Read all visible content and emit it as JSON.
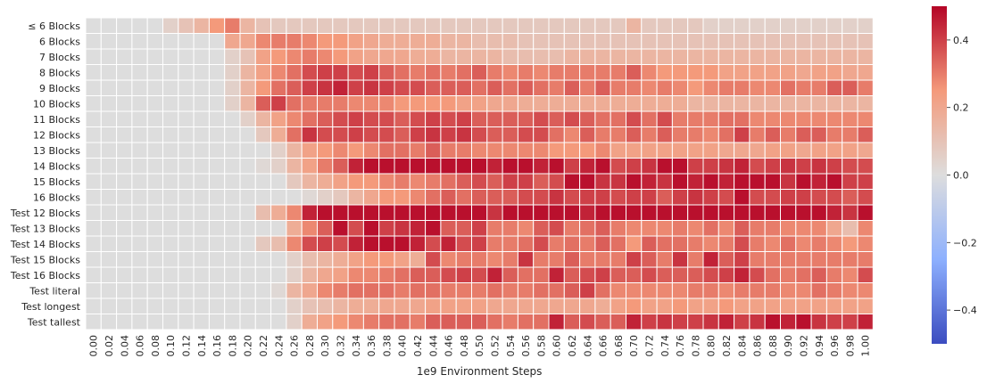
{
  "chart_data": {
    "type": "heatmap",
    "title": "",
    "xlabel": "1e9 Environment Steps",
    "ylabel": "",
    "x": [
      "0.00",
      "0.02",
      "0.04",
      "0.06",
      "0.08",
      "0.10",
      "0.12",
      "0.14",
      "0.16",
      "0.18",
      "0.20",
      "0.22",
      "0.24",
      "0.26",
      "0.28",
      "0.30",
      "0.32",
      "0.34",
      "0.36",
      "0.38",
      "0.40",
      "0.42",
      "0.44",
      "0.46",
      "0.48",
      "0.50",
      "0.52",
      "0.54",
      "0.56",
      "0.58",
      "0.60",
      "0.62",
      "0.64",
      "0.66",
      "0.68",
      "0.70",
      "0.72",
      "0.74",
      "0.76",
      "0.78",
      "0.80",
      "0.82",
      "0.84",
      "0.86",
      "0.88",
      "0.90",
      "0.92",
      "0.94",
      "0.96",
      "0.98",
      "1.00"
    ],
    "y": [
      "≤ 6 Blocks",
      "6 Blocks",
      "7 Blocks",
      "8 Blocks",
      "9 Blocks",
      "10 Blocks",
      "11 Blocks",
      "12 Blocks",
      "13 Blocks",
      "14 Blocks",
      "15 Blocks",
      "16 Blocks",
      "Test 12 Blocks",
      "Test 13 Blocks",
      "Test 14 Blocks",
      "Test 15 Blocks",
      "Test 16 Blocks",
      "Test literal",
      "Test longest",
      "Test tallest"
    ],
    "colormap": "coolwarm",
    "colorbar": {
      "vmin": -0.5,
      "vmax": 0.5,
      "ticks": [
        -0.4,
        -0.2,
        0.0,
        0.2,
        0.4
      ],
      "tick_labels": [
        "−0.4",
        "−0.2",
        "0.0",
        "0.2",
        "0.4"
      ]
    },
    "grid_line_color": "#ffffff",
    "values": [
      [
        0,
        0,
        0,
        0,
        0,
        0.05,
        0.1,
        0.15,
        0.25,
        0.3,
        0.15,
        0.1,
        0.08,
        0.08,
        0.08,
        0.08,
        0.08,
        0.08,
        0.08,
        0.08,
        0.08,
        0.08,
        0.08,
        0.08,
        0.08,
        0.08,
        0.08,
        0.08,
        0.08,
        0.08,
        0.08,
        0.08,
        0.08,
        0.08,
        0.08,
        0.15,
        0.08,
        0.08,
        0.08,
        0.08,
        0.05,
        0.05,
        0.05,
        0.05,
        0.05,
        0.05,
        0.05,
        0.05,
        0.05,
        0.05,
        0.05
      ],
      [
        0,
        0,
        0,
        0,
        0,
        0,
        0,
        0,
        0,
        0.2,
        0.2,
        0.28,
        0.3,
        0.3,
        0.28,
        0.25,
        0.25,
        0.22,
        0.2,
        0.18,
        0.18,
        0.18,
        0.18,
        0.15,
        0.15,
        0.12,
        0.12,
        0.12,
        0.1,
        0.1,
        0.1,
        0.1,
        0.1,
        0.1,
        0.1,
        0.1,
        0.1,
        0.1,
        0.1,
        0.1,
        0.1,
        0.1,
        0.1,
        0.1,
        0.1,
        0.1,
        0.1,
        0.1,
        0.1,
        0.1,
        0.1
      ],
      [
        0,
        0,
        0,
        0,
        0,
        0,
        0,
        0,
        0,
        0.05,
        0.1,
        0.22,
        0.25,
        0.28,
        0.3,
        0.28,
        0.25,
        0.22,
        0.2,
        0.2,
        0.2,
        0.18,
        0.18,
        0.15,
        0.15,
        0.15,
        0.15,
        0.12,
        0.12,
        0.12,
        0.12,
        0.15,
        0.15,
        0.15,
        0.15,
        0.15,
        0.15,
        0.15,
        0.15,
        0.15,
        0.15,
        0.15,
        0.15,
        0.15,
        0.15,
        0.15,
        0.15,
        0.15,
        0.15,
        0.15,
        0.15
      ],
      [
        0,
        0,
        0,
        0,
        0,
        0,
        0,
        0,
        0,
        0.05,
        0.15,
        0.22,
        0.28,
        0.32,
        0.38,
        0.4,
        0.4,
        0.38,
        0.4,
        0.35,
        0.32,
        0.3,
        0.32,
        0.3,
        0.32,
        0.35,
        0.3,
        0.28,
        0.3,
        0.28,
        0.3,
        0.3,
        0.3,
        0.3,
        0.3,
        0.35,
        0.28,
        0.25,
        0.25,
        0.25,
        0.25,
        0.22,
        0.22,
        0.22,
        0.22,
        0.22,
        0.2,
        0.22,
        0.22,
        0.2,
        0.2
      ],
      [
        0,
        0,
        0,
        0,
        0,
        0,
        0,
        0,
        0,
        0.05,
        0.15,
        0.25,
        0.32,
        0.35,
        0.4,
        0.42,
        0.45,
        0.4,
        0.42,
        0.4,
        0.38,
        0.38,
        0.35,
        0.35,
        0.35,
        0.32,
        0.35,
        0.32,
        0.35,
        0.32,
        0.3,
        0.35,
        0.3,
        0.35,
        0.3,
        0.3,
        0.28,
        0.3,
        0.28,
        0.25,
        0.28,
        0.3,
        0.3,
        0.28,
        0.28,
        0.32,
        0.3,
        0.3,
        0.35,
        0.35,
        0.3
      ],
      [
        0,
        0,
        0,
        0,
        0,
        0,
        0,
        0,
        0,
        0.05,
        0.15,
        0.35,
        0.4,
        0.32,
        0.3,
        0.3,
        0.3,
        0.28,
        0.28,
        0.28,
        0.25,
        0.25,
        0.25,
        0.25,
        0.22,
        0.22,
        0.2,
        0.2,
        0.18,
        0.18,
        0.18,
        0.18,
        0.18,
        0.18,
        0.18,
        0.18,
        0.18,
        0.18,
        0.18,
        0.15,
        0.15,
        0.15,
        0.15,
        0.15,
        0.15,
        0.15,
        0.15,
        0.15,
        0.15,
        0.15,
        0.15
      ],
      [
        0,
        0,
        0,
        0,
        0,
        0,
        0,
        0,
        0,
        0,
        0.05,
        0.15,
        0.22,
        0.28,
        0.32,
        0.35,
        0.38,
        0.4,
        0.38,
        0.38,
        0.35,
        0.38,
        0.4,
        0.38,
        0.4,
        0.35,
        0.35,
        0.35,
        0.35,
        0.38,
        0.35,
        0.38,
        0.35,
        0.32,
        0.32,
        0.38,
        0.32,
        0.38,
        0.3,
        0.3,
        0.3,
        0.32,
        0.32,
        0.28,
        0.28,
        0.28,
        0.28,
        0.28,
        0.28,
        0.28,
        0.28
      ],
      [
        0,
        0,
        0,
        0,
        0,
        0,
        0,
        0,
        0,
        0,
        0,
        0.08,
        0.18,
        0.32,
        0.42,
        0.38,
        0.38,
        0.4,
        0.38,
        0.38,
        0.35,
        0.4,
        0.42,
        0.4,
        0.42,
        0.38,
        0.35,
        0.35,
        0.38,
        0.38,
        0.32,
        0.28,
        0.35,
        0.3,
        0.3,
        0.35,
        0.3,
        0.35,
        0.3,
        0.3,
        0.28,
        0.32,
        0.4,
        0.3,
        0.35,
        0.3,
        0.35,
        0.35,
        0.3,
        0.3,
        0.35
      ],
      [
        0,
        0,
        0,
        0,
        0,
        0,
        0,
        0,
        0,
        0,
        0,
        0,
        0.05,
        0.15,
        0.22,
        0.25,
        0.28,
        0.25,
        0.28,
        0.32,
        0.32,
        0.3,
        0.35,
        0.3,
        0.3,
        0.28,
        0.28,
        0.28,
        0.28,
        0.28,
        0.25,
        0.25,
        0.25,
        0.28,
        0.22,
        0.22,
        0.22,
        0.22,
        0.22,
        0.22,
        0.22,
        0.2,
        0.2,
        0.2,
        0.22,
        0.22,
        0.2,
        0.22,
        0.22,
        0.22,
        0.2
      ],
      [
        0,
        0,
        0,
        0,
        0,
        0,
        0,
        0,
        0,
        0,
        0,
        0.02,
        0.05,
        0.15,
        0.22,
        0.3,
        0.35,
        0.45,
        0.48,
        0.48,
        0.48,
        0.48,
        0.48,
        0.48,
        0.48,
        0.48,
        0.45,
        0.48,
        0.48,
        0.45,
        0.48,
        0.4,
        0.45,
        0.48,
        0.38,
        0.4,
        0.42,
        0.48,
        0.48,
        0.4,
        0.4,
        0.42,
        0.45,
        0.38,
        0.4,
        0.42,
        0.4,
        0.42,
        0.4,
        0.38,
        0.38
      ],
      [
        0,
        0,
        0,
        0,
        0,
        0,
        0,
        0,
        0,
        0,
        0,
        0,
        0,
        0.08,
        0.15,
        0.18,
        0.22,
        0.25,
        0.25,
        0.28,
        0.3,
        0.28,
        0.3,
        0.32,
        0.35,
        0.38,
        0.35,
        0.4,
        0.4,
        0.35,
        0.38,
        0.48,
        0.48,
        0.42,
        0.42,
        0.48,
        0.45,
        0.42,
        0.48,
        0.45,
        0.48,
        0.45,
        0.48,
        0.48,
        0.48,
        0.42,
        0.48,
        0.45,
        0.48,
        0.4,
        0.4
      ],
      [
        0,
        0,
        0,
        0,
        0,
        0,
        0,
        0,
        0,
        0,
        0,
        0,
        0,
        0,
        0.02,
        0.05,
        0.08,
        0.15,
        0.2,
        0.25,
        0.25,
        0.28,
        0.32,
        0.35,
        0.32,
        0.35,
        0.35,
        0.35,
        0.38,
        0.38,
        0.42,
        0.38,
        0.4,
        0.4,
        0.38,
        0.4,
        0.4,
        0.35,
        0.4,
        0.42,
        0.4,
        0.38,
        0.48,
        0.38,
        0.38,
        0.4,
        0.4,
        0.38,
        0.38,
        0.35,
        0.38
      ],
      [
        0,
        0,
        0,
        0,
        0,
        0,
        0,
        0,
        0,
        0,
        0,
        0.12,
        0.18,
        0.28,
        0.45,
        0.48,
        0.48,
        0.48,
        0.48,
        0.48,
        0.48,
        0.48,
        0.48,
        0.48,
        0.48,
        0.48,
        0.42,
        0.48,
        0.48,
        0.48,
        0.48,
        0.48,
        0.45,
        0.48,
        0.48,
        0.48,
        0.48,
        0.48,
        0.48,
        0.48,
        0.48,
        0.48,
        0.48,
        0.48,
        0.48,
        0.48,
        0.48,
        0.48,
        0.45,
        0.42,
        0.48
      ],
      [
        0,
        0,
        0,
        0,
        0,
        0,
        0,
        0,
        0,
        0,
        0,
        0,
        0,
        0.18,
        0.28,
        0.35,
        0.48,
        0.38,
        0.48,
        0.4,
        0.42,
        0.45,
        0.48,
        0.35,
        0.35,
        0.4,
        0.3,
        0.3,
        0.28,
        0.35,
        0.38,
        0.3,
        0.32,
        0.35,
        0.3,
        0.28,
        0.28,
        0.28,
        0.3,
        0.28,
        0.32,
        0.28,
        0.35,
        0.3,
        0.3,
        0.28,
        0.28,
        0.28,
        0.2,
        0.12,
        0.28
      ],
      [
        0,
        0,
        0,
        0,
        0,
        0,
        0,
        0,
        0,
        0,
        0,
        0.08,
        0.12,
        0.28,
        0.38,
        0.4,
        0.38,
        0.45,
        0.48,
        0.48,
        0.48,
        0.45,
        0.38,
        0.45,
        0.38,
        0.4,
        0.3,
        0.3,
        0.32,
        0.38,
        0.3,
        0.32,
        0.3,
        0.35,
        0.32,
        0.25,
        0.35,
        0.32,
        0.32,
        0.3,
        0.28,
        0.3,
        0.38,
        0.3,
        0.28,
        0.32,
        0.28,
        0.3,
        0.28,
        0.25,
        0.28
      ],
      [
        0,
        0,
        0,
        0,
        0,
        0,
        0,
        0,
        0,
        0,
        0,
        0,
        0,
        0.05,
        0.12,
        0.15,
        0.18,
        0.22,
        0.25,
        0.25,
        0.22,
        0.18,
        0.38,
        0.28,
        0.3,
        0.3,
        0.28,
        0.3,
        0.42,
        0.3,
        0.3,
        0.35,
        0.3,
        0.3,
        0.3,
        0.4,
        0.35,
        0.3,
        0.42,
        0.3,
        0.45,
        0.35,
        0.4,
        0.3,
        0.3,
        0.3,
        0.3,
        0.3,
        0.3,
        0.3,
        0.3
      ],
      [
        0,
        0,
        0,
        0,
        0,
        0,
        0,
        0,
        0,
        0,
        0,
        0,
        0,
        0.05,
        0.15,
        0.2,
        0.22,
        0.28,
        0.28,
        0.3,
        0.32,
        0.35,
        0.35,
        0.38,
        0.4,
        0.38,
        0.45,
        0.35,
        0.32,
        0.32,
        0.45,
        0.35,
        0.38,
        0.4,
        0.35,
        0.35,
        0.38,
        0.35,
        0.35,
        0.35,
        0.38,
        0.4,
        0.45,
        0.38,
        0.32,
        0.3,
        0.32,
        0.35,
        0.3,
        0.28,
        0.38
      ],
      [
        0,
        0,
        0,
        0,
        0,
        0,
        0,
        0,
        0,
        0,
        0,
        0,
        0.02,
        0.15,
        0.2,
        0.28,
        0.3,
        0.32,
        0.32,
        0.32,
        0.3,
        0.32,
        0.32,
        0.3,
        0.3,
        0.3,
        0.32,
        0.3,
        0.3,
        0.32,
        0.32,
        0.35,
        0.4,
        0.32,
        0.28,
        0.28,
        0.28,
        0.28,
        0.28,
        0.3,
        0.3,
        0.28,
        0.3,
        0.3,
        0.3,
        0.28,
        0.28,
        0.32,
        0.3,
        0.28,
        0.28
      ],
      [
        0,
        0,
        0,
        0,
        0,
        0,
        0,
        0,
        0,
        0,
        0,
        0,
        0,
        0.05,
        0.1,
        0.12,
        0.15,
        0.18,
        0.18,
        0.2,
        0.2,
        0.2,
        0.22,
        0.22,
        0.22,
        0.22,
        0.2,
        0.2,
        0.2,
        0.2,
        0.2,
        0.2,
        0.2,
        0.18,
        0.22,
        0.25,
        0.22,
        0.22,
        0.25,
        0.22,
        0.22,
        0.25,
        0.22,
        0.22,
        0.22,
        0.22,
        0.22,
        0.22,
        0.22,
        0.22,
        0.22
      ],
      [
        0,
        0,
        0,
        0,
        0,
        0,
        0,
        0,
        0,
        0,
        0,
        0,
        0,
        0.05,
        0.18,
        0.22,
        0.25,
        0.28,
        0.3,
        0.32,
        0.32,
        0.3,
        0.35,
        0.35,
        0.35,
        0.35,
        0.32,
        0.3,
        0.32,
        0.32,
        0.45,
        0.35,
        0.38,
        0.35,
        0.35,
        0.45,
        0.4,
        0.42,
        0.4,
        0.4,
        0.42,
        0.45,
        0.4,
        0.42,
        0.48,
        0.45,
        0.48,
        0.42,
        0.4,
        0.4,
        0.45
      ]
    ]
  }
}
